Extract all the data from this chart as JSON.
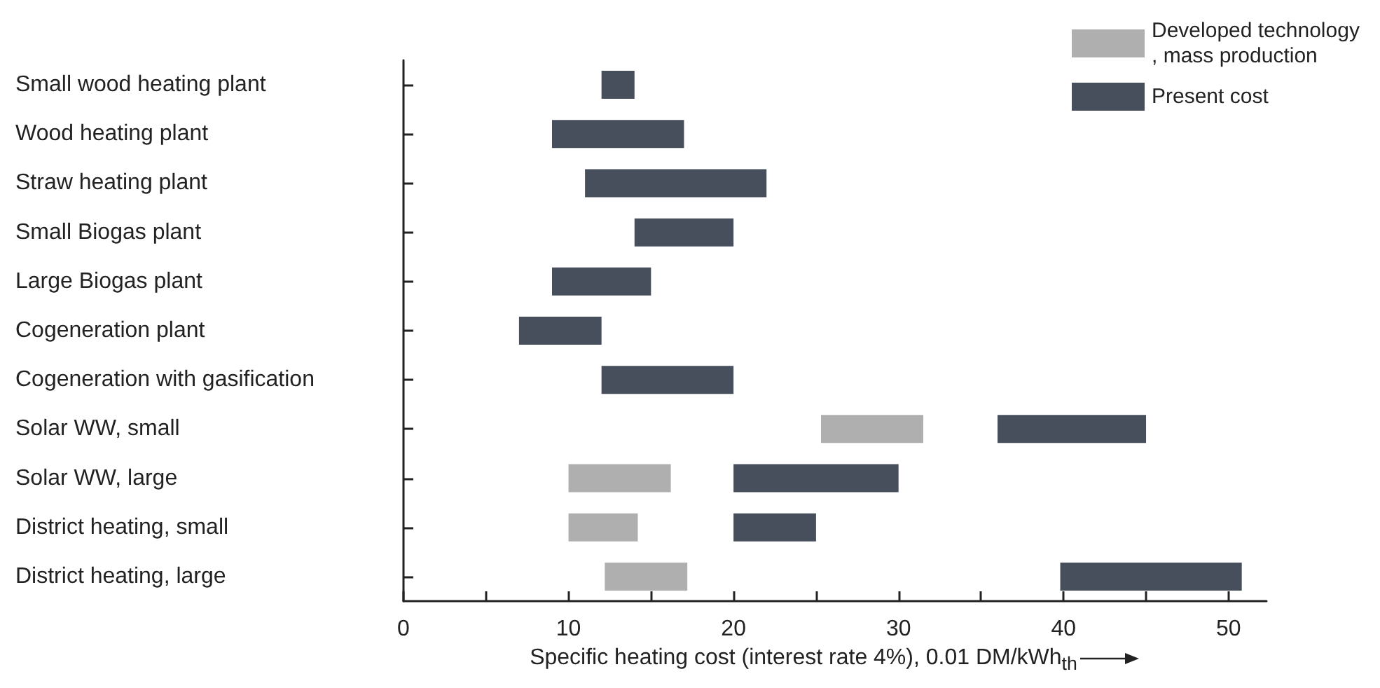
{
  "chart_data": {
    "type": "bar",
    "orientation": "horizontal",
    "xlabel": "Specific heating cost (interest rate 4%), 0.01 DM/kWh$_{th}$",
    "categories": [
      "Small wood heating plant",
      "Wood heating plant",
      "Straw heating plant",
      "Small Biogas plant",
      "Large Biogas plant",
      "Cogeneration plant",
      "Cogeneration with gasification",
      "Solar WW, small",
      "Solar WW, large",
      "District heating, small",
      "District heating, large"
    ],
    "series": [
      {
        "name": "Developed technology, mass production",
        "color": "#afafaf",
        "base": [
          null,
          null,
          null,
          null,
          null,
          null,
          null,
          25.3,
          10,
          10,
          12.2
        ],
        "values": [
          null,
          null,
          null,
          null,
          null,
          null,
          null,
          6.2,
          6.2,
          4.2,
          5
        ]
      },
      {
        "name": "Present cost",
        "color": "#474f5c",
        "base": [
          12,
          9,
          11,
          14,
          9,
          7,
          12,
          36,
          20,
          20,
          39.8
        ],
        "values": [
          2,
          8,
          11,
          6,
          6,
          5,
          8,
          9,
          10,
          5,
          11
        ]
      }
    ],
    "xlim": [
      0,
      52.3
    ],
    "xticks": [
      0,
      {
        "value": 5,
        "label": null
      },
      10,
      {
        "value": 15,
        "label": null
      },
      20,
      {
        "value": 25,
        "label": null
      },
      30,
      {
        "value": 35,
        "label": null
      },
      40,
      {
        "value": 45,
        "label": null
      },
      50
    ],
    "grid": false,
    "legend": "top right"
  }
}
